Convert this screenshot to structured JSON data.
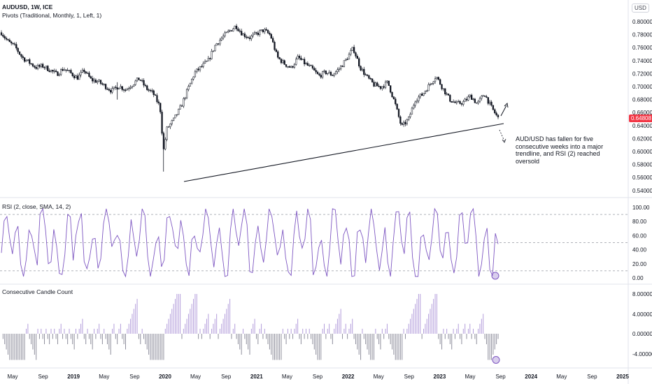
{
  "header": {
    "symbol": "AUDUSD, 1W, ICE",
    "indicator": "Pivots (Traditional, Monthly, 1, Left, 1)",
    "currency": "USD"
  },
  "price_tag": "0.64808",
  "annotation": "AUD/USD has fallen for five consecutive weeks into a major trendline, and RSI (2) reached oversold",
  "panes": {
    "rsi_title": "RSI (2, close, SMA, 14, 2)",
    "ccc_title": "Consecutive Candle Count"
  },
  "colors": {
    "candle": "#131722",
    "rsi_line": "#7e57c2",
    "ccc_bar": "#8e8e9c",
    "ccc_bar_pos": "#b39ddb",
    "highlight": "#b39ddb",
    "price_tag": "#f23645",
    "grid": "#9598a1"
  },
  "chart_data": [
    {
      "type": "candlestick",
      "ylim": [
        0.54,
        0.81
      ],
      "y_ticks": [
        "0.80000",
        "0.78000",
        "0.76000",
        "0.74000",
        "0.72000",
        "0.70000",
        "0.68000",
        "0.66000",
        "0.64000",
        "0.62000",
        "0.60000",
        "0.58000",
        "0.56000",
        "0.54000"
      ],
      "x_ticks": [
        "May",
        "Sep",
        "2019",
        "May",
        "Sep",
        "2020",
        "May",
        "Sep",
        "2021",
        "May",
        "Sep",
        "2022",
        "May",
        "Sep",
        "2023",
        "May",
        "Sep",
        "2024",
        "May",
        "Sep",
        "2025"
      ],
      "trendline": [
        {
          "x": "2020-03",
          "y": 0.552
        },
        {
          "x": "2023-08",
          "y": 0.64
        }
      ],
      "close_path": [
        {
          "t": 0,
          "y": 0.78
        },
        {
          "t": 0.5,
          "y": 0.772
        },
        {
          "t": 1,
          "y": 0.765
        },
        {
          "t": 2,
          "y": 0.757
        },
        {
          "t": 3,
          "y": 0.74
        },
        {
          "t": 4,
          "y": 0.732
        },
        {
          "t": 5,
          "y": 0.724
        },
        {
          "t": 6,
          "y": 0.726
        },
        {
          "t": 7,
          "y": 0.72
        },
        {
          "t": 8,
          "y": 0.713
        },
        {
          "t": 9,
          "y": 0.722
        },
        {
          "t": 10,
          "y": 0.715
        },
        {
          "t": 11,
          "y": 0.707
        },
        {
          "t": 12,
          "y": 0.719
        },
        {
          "t": 13,
          "y": 0.704
        },
        {
          "t": 14,
          "y": 0.701
        },
        {
          "t": 15,
          "y": 0.694
        },
        {
          "t": 16,
          "y": 0.686
        },
        {
          "t": 17,
          "y": 0.694
        },
        {
          "t": 18,
          "y": 0.688
        },
        {
          "t": 19,
          "y": 0.697
        },
        {
          "t": 20,
          "y": 0.706
        },
        {
          "t": 21,
          "y": 0.69
        },
        {
          "t": 22,
          "y": 0.682
        },
        {
          "t": 23,
          "y": 0.66
        },
        {
          "t": 23.5,
          "y": 0.59
        },
        {
          "t": 24,
          "y": 0.625
        },
        {
          "t": 25,
          "y": 0.64
        },
        {
          "t": 26,
          "y": 0.66
        },
        {
          "t": 27,
          "y": 0.688
        },
        {
          "t": 28,
          "y": 0.715
        },
        {
          "t": 29,
          "y": 0.725
        },
        {
          "t": 30,
          "y": 0.735
        },
        {
          "t": 31,
          "y": 0.76
        },
        {
          "t": 32,
          "y": 0.772
        },
        {
          "t": 33,
          "y": 0.782
        },
        {
          "t": 34,
          "y": 0.791
        },
        {
          "t": 35,
          "y": 0.777
        },
        {
          "t": 36,
          "y": 0.772
        },
        {
          "t": 37,
          "y": 0.778
        },
        {
          "t": 38,
          "y": 0.784
        },
        {
          "t": 39,
          "y": 0.776
        },
        {
          "t": 40,
          "y": 0.74
        },
        {
          "t": 41,
          "y": 0.73
        },
        {
          "t": 42,
          "y": 0.723
        },
        {
          "t": 43,
          "y": 0.74
        },
        {
          "t": 44,
          "y": 0.73
        },
        {
          "t": 45,
          "y": 0.722
        },
        {
          "t": 46,
          "y": 0.71
        },
        {
          "t": 47,
          "y": 0.716
        },
        {
          "t": 48,
          "y": 0.712
        },
        {
          "t": 49,
          "y": 0.722
        },
        {
          "t": 50,
          "y": 0.737
        },
        {
          "t": 51,
          "y": 0.755
        },
        {
          "t": 52,
          "y": 0.724
        },
        {
          "t": 53,
          "y": 0.708
        },
        {
          "t": 54,
          "y": 0.696
        },
        {
          "t": 55,
          "y": 0.692
        },
        {
          "t": 56,
          "y": 0.7
        },
        {
          "t": 57,
          "y": 0.668
        },
        {
          "t": 58,
          "y": 0.628
        },
        {
          "t": 59,
          "y": 0.64
        },
        {
          "t": 60,
          "y": 0.672
        },
        {
          "t": 61,
          "y": 0.68
        },
        {
          "t": 62,
          "y": 0.695
        },
        {
          "t": 63,
          "y": 0.71
        },
        {
          "t": 64,
          "y": 0.69
        },
        {
          "t": 65,
          "y": 0.672
        },
        {
          "t": 66,
          "y": 0.665
        },
        {
          "t": 67,
          "y": 0.668
        },
        {
          "t": 68,
          "y": 0.678
        },
        {
          "t": 69,
          "y": 0.665
        },
        {
          "t": 70,
          "y": 0.682
        },
        {
          "t": 71,
          "y": 0.66
        },
        {
          "t": 72,
          "y": 0.642
        }
      ]
    },
    {
      "type": "line",
      "title": "RSI (2, close, SMA, 14, 2)",
      "ylim": [
        0,
        100
      ],
      "y_ticks": [
        "100.00",
        "80.00",
        "60.00",
        "40.00",
        "20.00",
        "0.00"
      ],
      "levels": [
        90,
        50,
        10
      ],
      "highlight_point": {
        "y": 3
      }
    },
    {
      "type": "bar",
      "title": "Consecutive Candle Count",
      "ylim": [
        -5,
        8.5
      ],
      "y_ticks": [
        "8.00000",
        "4.00000",
        "0.00000",
        "-4.00000"
      ],
      "highlight_point": {
        "y": -5
      }
    }
  ]
}
